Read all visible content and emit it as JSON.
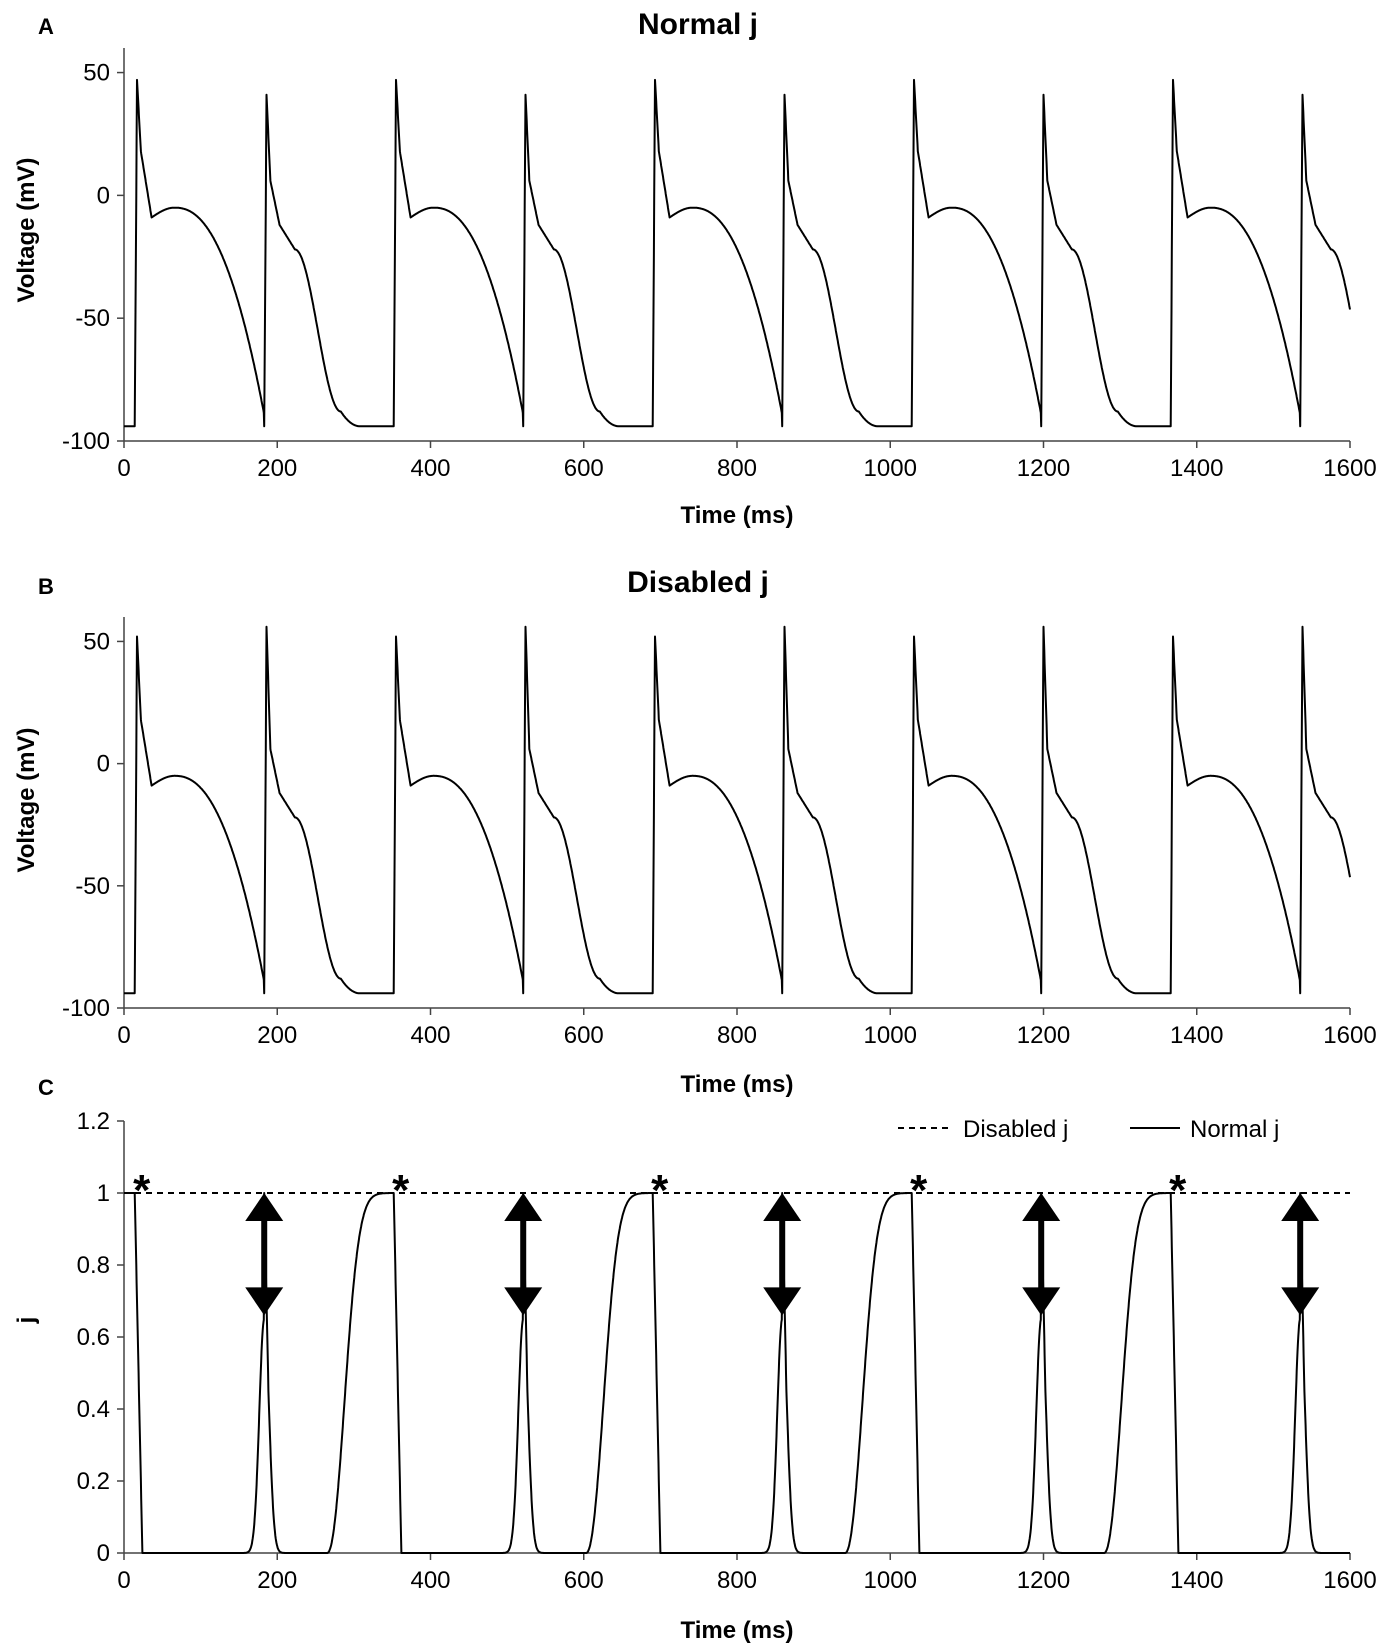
{
  "chart_data": [
    {
      "panel": "A",
      "type": "line",
      "title": "Normal j",
      "xlabel": "Time (ms)",
      "ylabel": "Voltage (mV)",
      "xlim": [
        0,
        1600
      ],
      "ylim": [
        -100,
        60
      ],
      "xticks": [
        0,
        200,
        400,
        600,
        800,
        1000,
        1200,
        1400,
        1600
      ],
      "yticks": [
        -100,
        -50,
        0,
        50
      ],
      "series": [
        {
          "name": "Voltage",
          "rest_mV": -94,
          "beats": [
            {
              "start_ms": 14,
              "peak_mV": 47,
              "kind": "long"
            },
            {
              "start_ms": 183,
              "peak_mV": 41,
              "kind": "short"
            },
            {
              "start_ms": 352,
              "peak_mV": 47,
              "kind": "long"
            },
            {
              "start_ms": 521,
              "peak_mV": 41,
              "kind": "short"
            },
            {
              "start_ms": 690,
              "peak_mV": 47,
              "kind": "long"
            },
            {
              "start_ms": 859,
              "peak_mV": 41,
              "kind": "short"
            },
            {
              "start_ms": 1028,
              "peak_mV": 47,
              "kind": "long"
            },
            {
              "start_ms": 1197,
              "peak_mV": 41,
              "kind": "short"
            },
            {
              "start_ms": 1366,
              "peak_mV": 47,
              "kind": "long"
            },
            {
              "start_ms": 1535,
              "peak_mV": 41,
              "kind": "short"
            }
          ]
        }
      ]
    },
    {
      "panel": "B",
      "type": "line",
      "title": "Disabled j",
      "xlabel": "Time (ms)",
      "ylabel": "Voltage (mV)",
      "xlim": [
        0,
        1600
      ],
      "ylim": [
        -100,
        60
      ],
      "xticks": [
        0,
        200,
        400,
        600,
        800,
        1000,
        1200,
        1400,
        1600
      ],
      "yticks": [
        -100,
        -50,
        0,
        50
      ],
      "series": [
        {
          "name": "Voltage",
          "rest_mV": -94,
          "beats": [
            {
              "start_ms": 14,
              "peak_mV": 52,
              "kind": "long"
            },
            {
              "start_ms": 183,
              "peak_mV": 56,
              "kind": "short"
            },
            {
              "start_ms": 352,
              "peak_mV": 52,
              "kind": "long"
            },
            {
              "start_ms": 521,
              "peak_mV": 56,
              "kind": "short"
            },
            {
              "start_ms": 690,
              "peak_mV": 52,
              "kind": "long"
            },
            {
              "start_ms": 859,
              "peak_mV": 56,
              "kind": "short"
            },
            {
              "start_ms": 1028,
              "peak_mV": 52,
              "kind": "long"
            },
            {
              "start_ms": 1197,
              "peak_mV": 56,
              "kind": "short"
            },
            {
              "start_ms": 1366,
              "peak_mV": 52,
              "kind": "long"
            },
            {
              "start_ms": 1535,
              "peak_mV": 56,
              "kind": "short"
            }
          ]
        }
      ]
    },
    {
      "panel": "C",
      "type": "line",
      "title": "",
      "xlabel": "Time (ms)",
      "ylabel": "j",
      "xlim": [
        0,
        1600
      ],
      "ylim": [
        0,
        1.2
      ],
      "xticks": [
        0,
        200,
        400,
        600,
        800,
        1000,
        1200,
        1400,
        1600
      ],
      "yticks": [
        0,
        0.2,
        0.4,
        0.6,
        0.8,
        1,
        1.2
      ],
      "legend": {
        "position": "top-right",
        "entries": [
          "Disabled j",
          "Normal j"
        ]
      },
      "series": [
        {
          "name": "Disabled j",
          "style": "dashed",
          "constant_value": 1.0
        },
        {
          "name": "Normal j",
          "style": "solid",
          "drop_times_ms": [
            14,
            183,
            352,
            521,
            690,
            859,
            1028,
            1197,
            1366,
            1535
          ],
          "recovery_peaks": [
            {
              "center_ms": 183,
              "value": 0.65,
              "kind": "short"
            },
            {
              "start_ms": 265,
              "end_ms": 352,
              "value": 1.0,
              "kind": "long"
            },
            {
              "center_ms": 521,
              "value": 0.65,
              "kind": "short"
            },
            {
              "start_ms": 603,
              "end_ms": 690,
              "value": 1.0,
              "kind": "long"
            },
            {
              "center_ms": 859,
              "value": 0.65,
              "kind": "short"
            },
            {
              "start_ms": 941,
              "end_ms": 1028,
              "value": 1.0,
              "kind": "long"
            },
            {
              "center_ms": 1197,
              "value": 0.65,
              "kind": "short"
            },
            {
              "start_ms": 1279,
              "end_ms": 1366,
              "value": 1.0,
              "kind": "long"
            },
            {
              "center_ms": 1535,
              "value": 0.65,
              "kind": "short"
            }
          ]
        }
      ],
      "annotations": {
        "stars_ms": [
          14,
          352,
          690,
          1028,
          1366
        ],
        "star_symbol": "*",
        "star_color": "#ff0000",
        "double_arrows": [
          {
            "x_ms": 183,
            "from": 1.0,
            "to": 0.66
          },
          {
            "x_ms": 521,
            "from": 1.0,
            "to": 0.66
          },
          {
            "x_ms": 859,
            "from": 1.0,
            "to": 0.66
          },
          {
            "x_ms": 1197,
            "from": 1.0,
            "to": 0.66
          },
          {
            "x_ms": 1535,
            "from": 1.0,
            "to": 0.66
          }
        ]
      }
    }
  ]
}
